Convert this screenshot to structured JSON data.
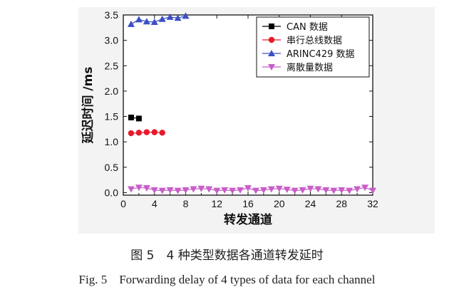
{
  "chart_data": {
    "type": "scatter",
    "xlabel": "转发通道",
    "ylabel": "延迟时间 /ms",
    "xlim": [
      0,
      32
    ],
    "ylim": [
      -0.05,
      3.5
    ],
    "xticks": [
      0,
      4,
      8,
      12,
      16,
      20,
      24,
      28,
      32
    ],
    "yticks": [
      0.0,
      0.5,
      1.0,
      1.5,
      2.0,
      2.5,
      3.0,
      3.5
    ],
    "ytick_labels": [
      "0.0",
      "0.5",
      "1.0",
      "1.5",
      "2.0",
      "2.5",
      "3.0",
      "3.5"
    ],
    "grid": false,
    "legend_position": "top-right",
    "series": [
      {
        "name": "CAN 数据",
        "color": "#000000",
        "marker": "square",
        "x": [
          1,
          2
        ],
        "y": [
          1.48,
          1.46
        ]
      },
      {
        "name": "串行总线数据",
        "color": "#e8192c",
        "marker": "circle",
        "x": [
          1,
          2,
          3,
          4,
          5
        ],
        "y": [
          1.17,
          1.18,
          1.19,
          1.19,
          1.18
        ]
      },
      {
        "name": "ARINC429 数据",
        "color": "#3b4fc4",
        "marker": "triangle-up",
        "x": [
          1,
          2,
          3,
          4,
          5,
          6,
          7,
          8
        ],
        "y": [
          3.32,
          3.41,
          3.37,
          3.36,
          3.42,
          3.46,
          3.44,
          3.48
        ]
      },
      {
        "name": "离散量数据",
        "color": "#c85ec8",
        "marker": "triangle-down",
        "x": [
          1,
          2,
          3,
          4,
          5,
          6,
          7,
          8,
          9,
          10,
          11,
          12,
          13,
          14,
          15,
          16,
          17,
          18,
          19,
          20,
          21,
          22,
          23,
          24,
          25,
          26,
          27,
          28,
          29,
          30,
          31,
          32
        ],
        "y": [
          0.07,
          0.1,
          0.09,
          0.05,
          0.04,
          0.05,
          0.04,
          0.05,
          0.07,
          0.08,
          0.07,
          0.04,
          0.05,
          0.04,
          0.05,
          0.09,
          0.04,
          0.05,
          0.07,
          0.08,
          0.06,
          0.04,
          0.05,
          0.08,
          0.07,
          0.05,
          0.04,
          0.05,
          0.04,
          0.07,
          0.1,
          0.04
        ]
      }
    ]
  },
  "caption": {
    "cn": "图 5　4 种类型数据各通道转发延时",
    "en_label": "Fig. 5",
    "en_text": "Forwarding delay of 4 types of data for each channel"
  }
}
